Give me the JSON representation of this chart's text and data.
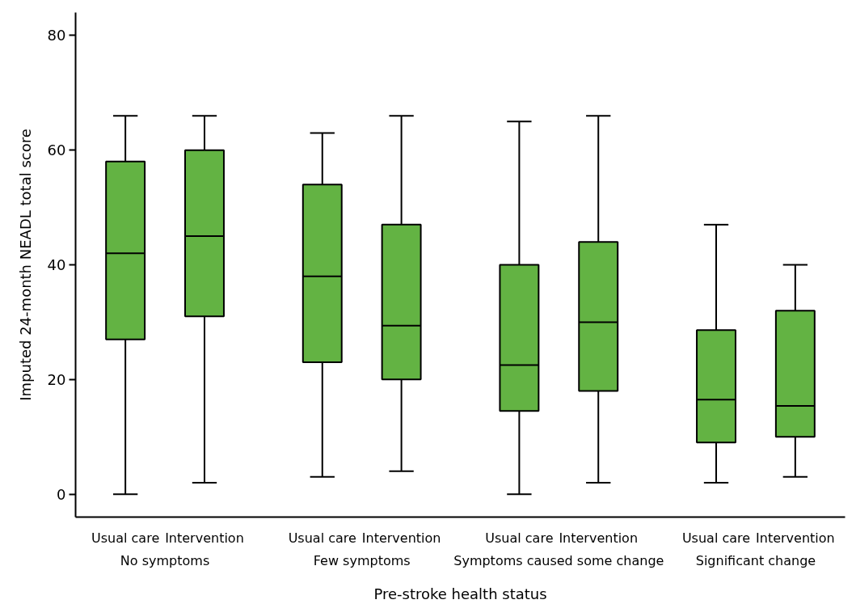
{
  "chart_data": {
    "type": "box",
    "xlabel": "Pre-stroke health status",
    "ylabel": "Imputed 24-month NEADL total score",
    "categories": [
      "Usual care",
      "Intervention",
      "Usual care",
      "Intervention",
      "Usual care",
      "Intervention",
      "Usual care",
      "Intervention"
    ],
    "annotations": [
      "No symptoms",
      "Few symptoms",
      "Symptoms caused some change",
      "Significant change"
    ],
    "color": "#63b343",
    "boxes": [
      {
        "low": 0,
        "q1": 27,
        "median": 42,
        "q3": 58,
        "high": 66
      },
      {
        "low": 2,
        "q1": 31,
        "median": 45,
        "q3": 60,
        "high": 66
      },
      {
        "low": 3,
        "q1": 23,
        "median": 38,
        "q3": 54,
        "high": 63
      },
      {
        "low": 4,
        "q1": 20,
        "median": 29.4,
        "q3": 47,
        "high": 66
      },
      {
        "low": 0,
        "q1": 14.5,
        "median": 22.5,
        "q3": 40,
        "high": 65
      },
      {
        "low": 2,
        "q1": 18,
        "median": 30,
        "q3": 44,
        "high": 66
      },
      {
        "low": 2,
        "q1": 9,
        "median": 16.5,
        "q3": 28.6,
        "high": 47
      },
      {
        "low": 3,
        "q1": 10,
        "median": 15.4,
        "q3": 32,
        "high": 40
      }
    ],
    "ylim": [
      -4,
      84
    ],
    "yticks": [
      0,
      20,
      40,
      60,
      80
    ]
  }
}
